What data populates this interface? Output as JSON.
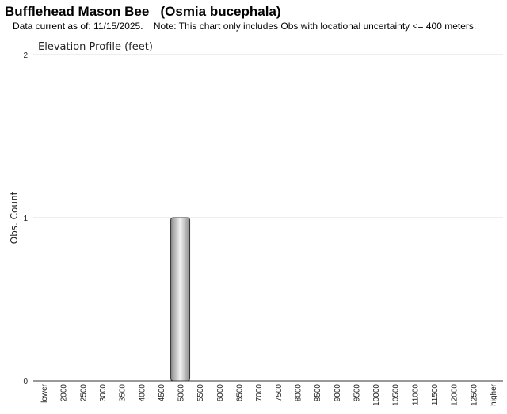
{
  "header": {
    "title": "Bufflehead Mason Bee   (Osmia bucephala)",
    "subtitle": "Data current as of: 11/15/2025.    Note: This chart only includes Obs with locational uncertainty <= 400 meters."
  },
  "colors": {
    "bar_fill_light": "#f2f2f2",
    "bar_fill_dark": "#8a8a8a",
    "bar_stroke": "#333333",
    "gridline": "#dddddd",
    "axis": "#333333"
  },
  "chart_data": {
    "type": "bar",
    "title": "Elevation Profile (feet)",
    "xlabel": "",
    "ylabel": "Obs. Count",
    "ylim": [
      0,
      2
    ],
    "yticks": [
      "0",
      "1",
      "2"
    ],
    "grid": true,
    "categories": [
      "lower",
      "2000",
      "2500",
      "3000",
      "3500",
      "4000",
      "4500",
      "5000",
      "5500",
      "6000",
      "6500",
      "7000",
      "7500",
      "8000",
      "8500",
      "9000",
      "9500",
      "10000",
      "10500",
      "11000",
      "11500",
      "12000",
      "12500",
      "higher"
    ],
    "values": [
      0,
      0,
      0,
      0,
      0,
      0,
      0,
      1,
      0,
      0,
      0,
      0,
      0,
      0,
      0,
      0,
      0,
      0,
      0,
      0,
      0,
      0,
      0,
      0
    ]
  }
}
